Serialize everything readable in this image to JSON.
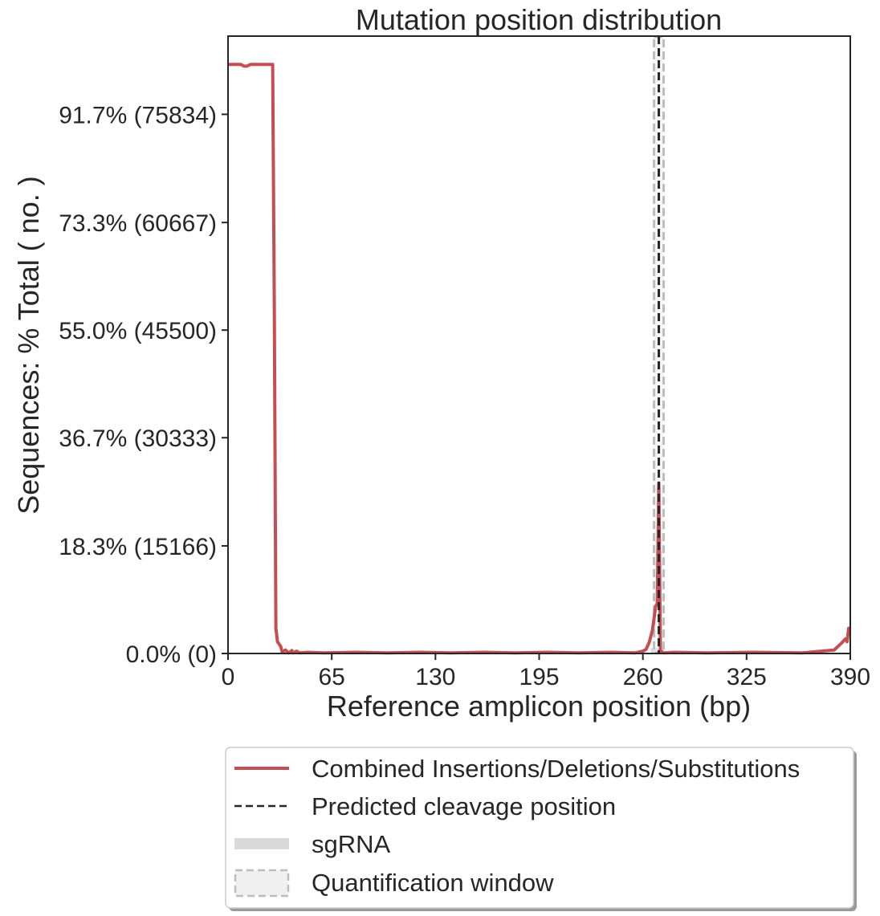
{
  "chart_data": {
    "type": "line",
    "title": "Mutation position distribution",
    "xlabel": "Reference amplicon position (bp)",
    "ylabel": "Sequences: % Total ( no. )",
    "xlim": [
      0,
      390
    ],
    "ylim": [
      0,
      105
    ],
    "x_ticks": [
      0,
      65,
      130,
      195,
      260,
      325,
      390
    ],
    "x_tick_labels": [
      "0",
      "65",
      "130",
      "195",
      "260",
      "325",
      "390"
    ],
    "y_ticks": [
      0.0,
      18.3,
      36.7,
      55.0,
      73.3,
      91.7
    ],
    "y_tick_labels": [
      "0.0% (0)",
      "18.3% (15166)",
      "36.7% (30333)",
      "55.0% (45500)",
      "73.3% (60667)",
      "91.7% (75834)"
    ],
    "grid": false,
    "legend_position": "below",
    "series": [
      {
        "name": "Combined Insertions/Deletions/Substitutions",
        "color": "#c44e52",
        "x": [
          0,
          8,
          10,
          12,
          14,
          20,
          24,
          28,
          29,
          30,
          31,
          33,
          34,
          36,
          38,
          40,
          41,
          43,
          45,
          50,
          60,
          80,
          100,
          120,
          140,
          160,
          180,
          200,
          220,
          240,
          255,
          260,
          262,
          264,
          266,
          267,
          268,
          269,
          270,
          271,
          272,
          273,
          280,
          300,
          330,
          360,
          380,
          385,
          387,
          388,
          389,
          390
        ],
        "y": [
          100.2,
          100.2,
          99.9,
          99.9,
          100.2,
          100.2,
          100.2,
          100.2,
          60,
          4.3,
          2.0,
          1.2,
          0.2,
          0.6,
          0.1,
          0.5,
          0.1,
          0.4,
          0.1,
          0.2,
          0.1,
          0.2,
          0.1,
          0.2,
          0.1,
          0.2,
          0.1,
          0.2,
          0.1,
          0.2,
          0.1,
          0.4,
          0.7,
          1.9,
          4.0,
          6.0,
          8.0,
          8.5,
          29.0,
          0.2,
          0.3,
          0.1,
          0.2,
          0.1,
          0.2,
          0.1,
          0.6,
          1.9,
          2.5,
          2.0,
          4.3,
          4.3
        ]
      }
    ],
    "predicted_cleavage_position": 270,
    "sgrna_range": [
      265,
      273
    ],
    "quantification_window": [
      267,
      273
    ],
    "colors": {
      "indel": "#c44e52",
      "cleavage": "#262626",
      "sgrna": "#d9d9d9",
      "quant_window": "#bdbdbd",
      "axis": "#262626"
    }
  },
  "legend": [
    {
      "label": "Combined Insertions/Deletions/Substitutions",
      "icon": "red-line-icon"
    },
    {
      "label": "Predicted cleavage position",
      "icon": "dashed-black-line-icon"
    },
    {
      "label": "sgRNA",
      "icon": "gray-bar-icon"
    },
    {
      "label": "Quantification window",
      "icon": "dashed-box-icon"
    }
  ]
}
